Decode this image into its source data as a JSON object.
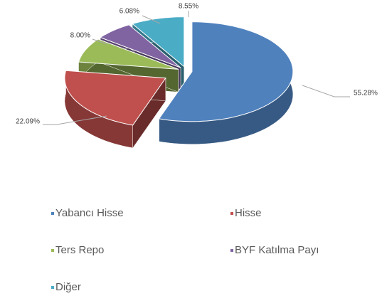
{
  "chart_data": {
    "type": "pie3d",
    "categories": [
      "Yabancı Hisse",
      "Hisse",
      "Ters Repo",
      "BYF Katılma Payı",
      "Diğer"
    ],
    "values": [
      55.28,
      22.09,
      8.0,
      6.08,
      8.55
    ],
    "value_labels": [
      "55.28%",
      "22.09%",
      "8.00%",
      "6.08%",
      "8.55%"
    ],
    "colors": [
      "#4f81bd",
      "#c0504d",
      "#9bbb59",
      "#8064a2",
      "#4bacc6"
    ],
    "legend": "bottom"
  }
}
